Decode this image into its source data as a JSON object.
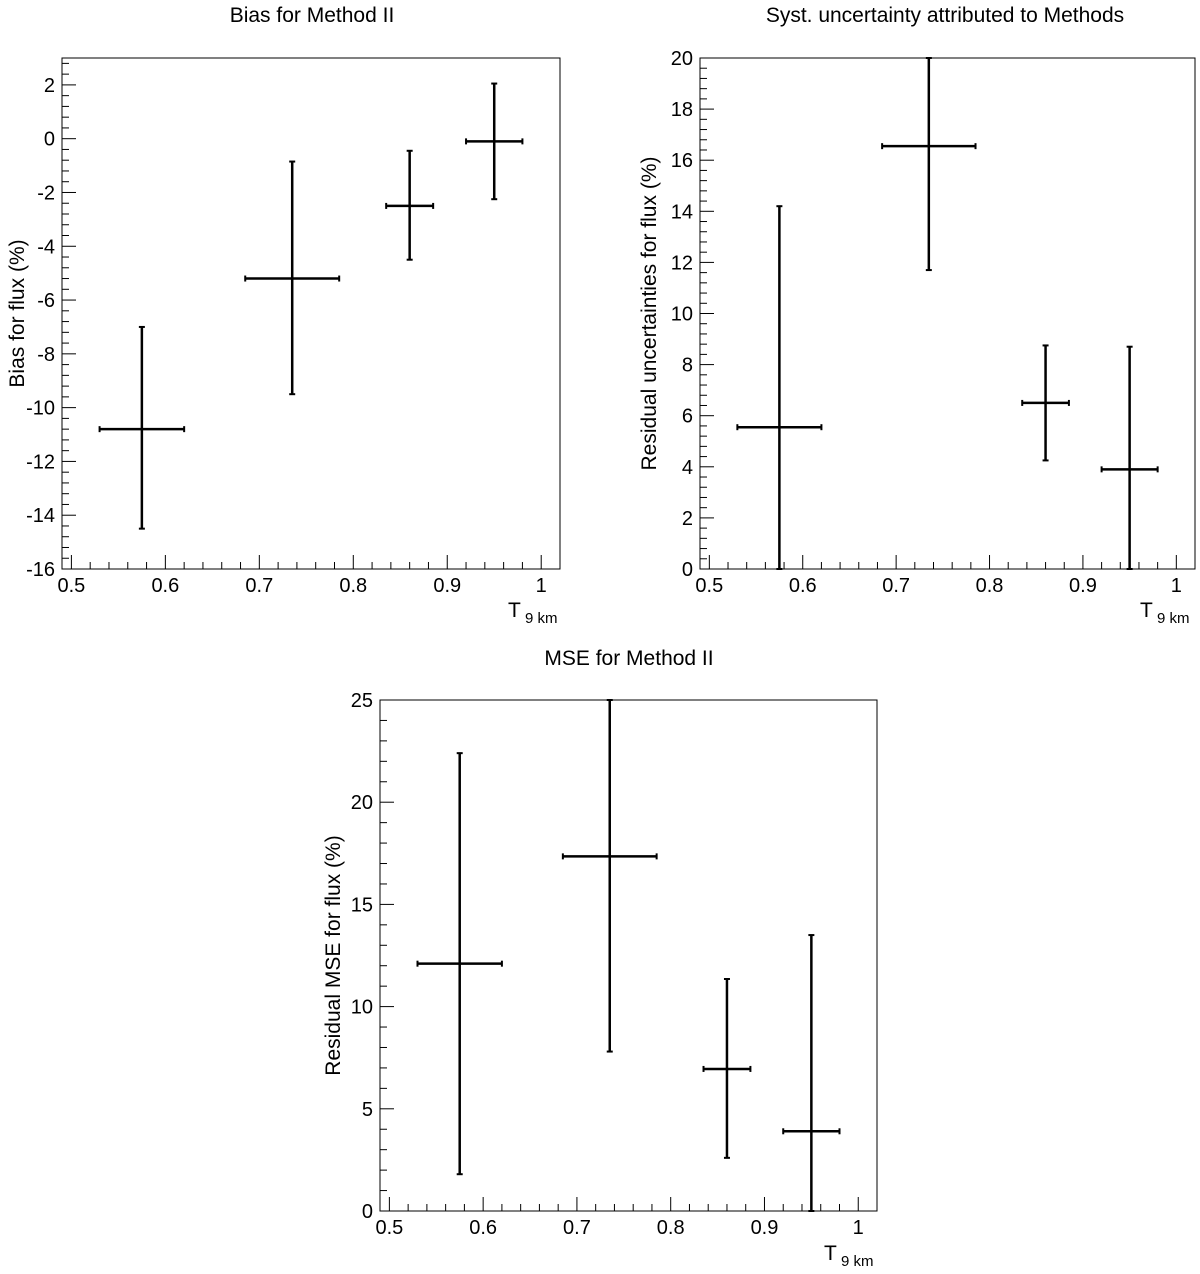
{
  "chart_data": [
    {
      "type": "errorbar",
      "title": "Bias for Method II",
      "ylabel": "Bias for flux (%)",
      "xlabel": "T",
      "xlabel_sub": "9 km",
      "xlim": [
        0.49,
        1.02
      ],
      "ylim": [
        -16,
        3
      ],
      "xticks": [
        "0.5",
        "0.6",
        "0.7",
        "0.8",
        "0.9",
        "1"
      ],
      "yticks": [
        "-16",
        "-14",
        "-12",
        "-10",
        "-8",
        "-6",
        "-4",
        "-2",
        "0",
        "2"
      ],
      "points": [
        {
          "x": 0.575,
          "xerr": 0.045,
          "y": -10.8,
          "ylow": -14.5,
          "yhigh": -7.0
        },
        {
          "x": 0.735,
          "xerr": 0.05,
          "y": -5.2,
          "ylow": -9.5,
          "yhigh": -0.85
        },
        {
          "x": 0.86,
          "xerr": 0.025,
          "y": -2.5,
          "ylow": -4.5,
          "yhigh": -0.45
        },
        {
          "x": 0.95,
          "xerr": 0.03,
          "y": -0.1,
          "ylow": -2.25,
          "yhigh": 2.05
        }
      ]
    },
    {
      "type": "errorbar",
      "title": "Syst. uncertainty attributed to Methods",
      "ylabel": "Residual uncertainties for flux (%)",
      "xlabel": "T",
      "xlabel_sub": "9 km",
      "xlim": [
        0.49,
        1.02
      ],
      "ylim": [
        0,
        20
      ],
      "xticks": [
        "0.5",
        "0.6",
        "0.7",
        "0.8",
        "0.9",
        "1"
      ],
      "yticks": [
        "0",
        "2",
        "4",
        "6",
        "8",
        "10",
        "12",
        "14",
        "16",
        "18",
        "20"
      ],
      "points": [
        {
          "x": 0.575,
          "xerr": 0.045,
          "y": 5.55,
          "ylow": 0.0,
          "yhigh": 14.2
        },
        {
          "x": 0.735,
          "xerr": 0.05,
          "y": 16.55,
          "ylow": 11.7,
          "yhigh": 20.0
        },
        {
          "x": 0.86,
          "xerr": 0.025,
          "y": 6.5,
          "ylow": 4.25,
          "yhigh": 8.75
        },
        {
          "x": 0.95,
          "xerr": 0.03,
          "y": 3.9,
          "ylow": 0.0,
          "yhigh": 8.7
        }
      ]
    },
    {
      "type": "errorbar",
      "title": "MSE for Method II",
      "ylabel": "Residual MSE for flux (%)",
      "xlabel": "T",
      "xlabel_sub": "9 km",
      "xlim": [
        0.49,
        1.02
      ],
      "ylim": [
        0,
        25
      ],
      "xticks": [
        "0.5",
        "0.6",
        "0.7",
        "0.8",
        "0.9",
        "1"
      ],
      "yticks": [
        "0",
        "5",
        "10",
        "15",
        "20",
        "25"
      ],
      "points": [
        {
          "x": 0.575,
          "xerr": 0.045,
          "y": 12.1,
          "ylow": 1.8,
          "yhigh": 22.4
        },
        {
          "x": 0.735,
          "xerr": 0.05,
          "y": 17.35,
          "ylow": 7.8,
          "yhigh": 25.0
        },
        {
          "x": 0.86,
          "xerr": 0.025,
          "y": 6.95,
          "ylow": 2.6,
          "yhigh": 11.35
        },
        {
          "x": 0.95,
          "xerr": 0.03,
          "y": 3.9,
          "ylow": 0.0,
          "yhigh": 13.5
        }
      ]
    }
  ]
}
